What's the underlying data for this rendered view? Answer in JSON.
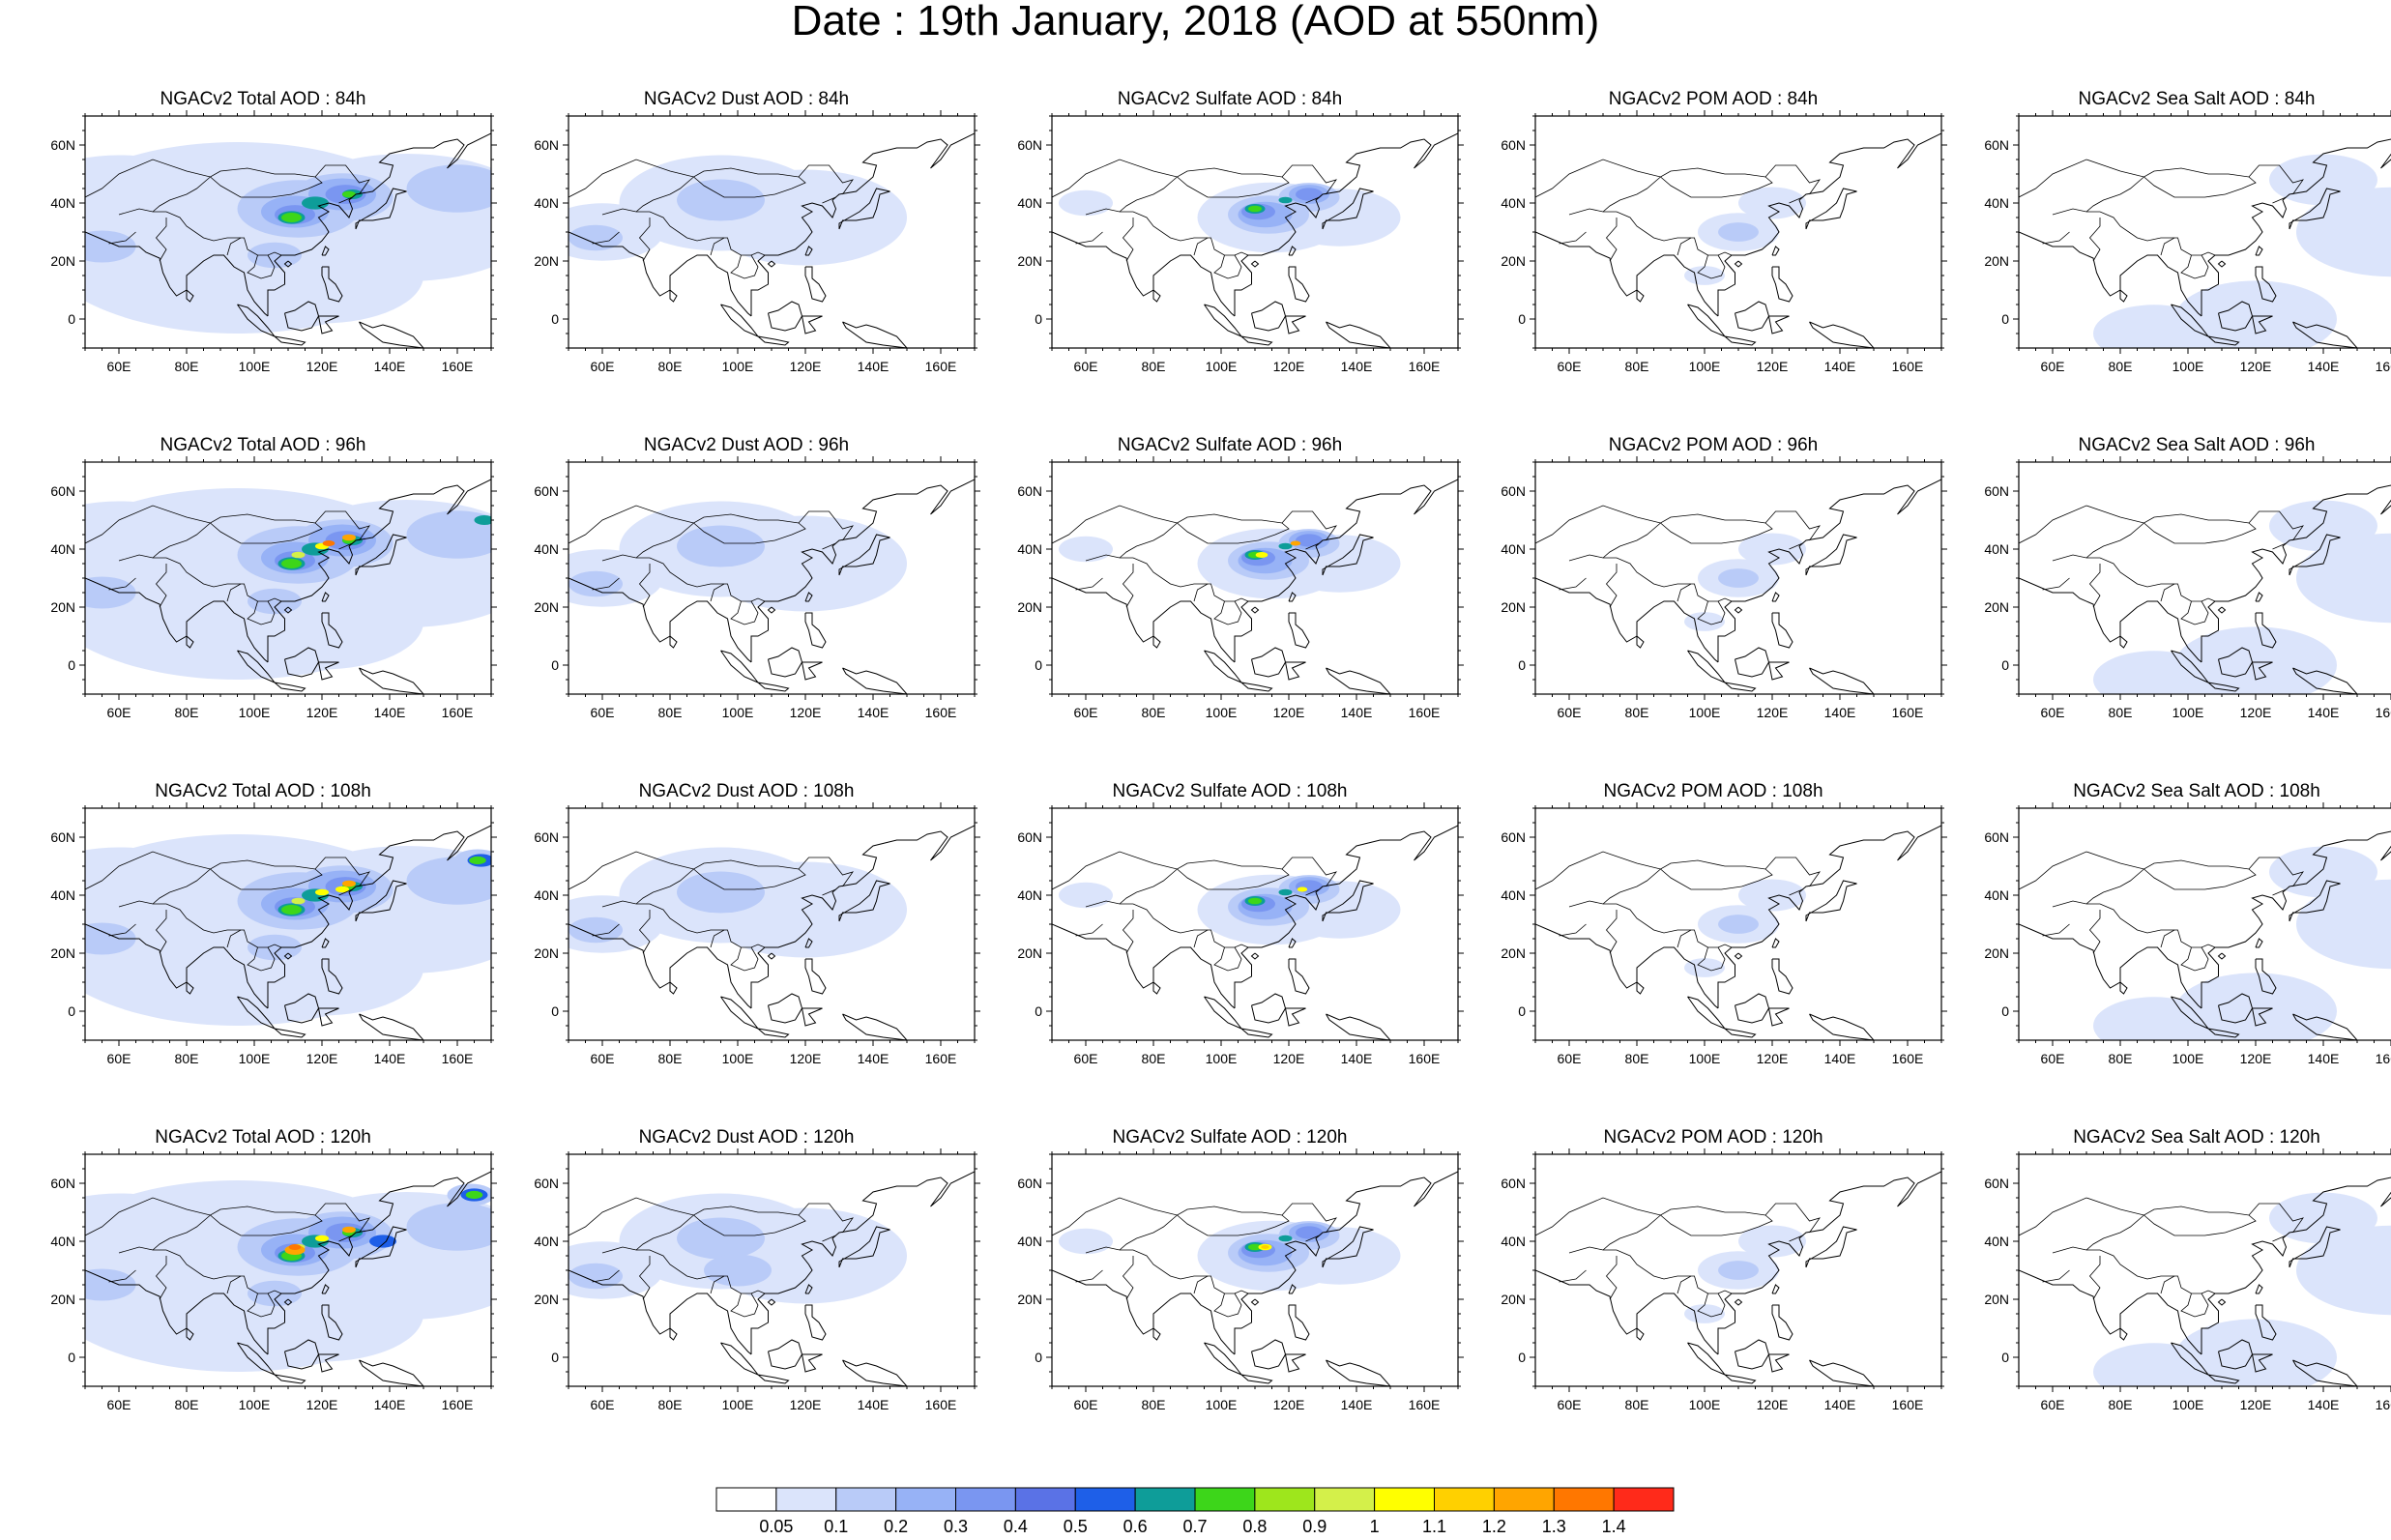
{
  "title": "Date : 19th January, 2018 (AOD at 550nm)",
  "panels": [
    [
      {
        "title": "NGACv2 Total AOD : 84h",
        "product": "total",
        "lead": "84h"
      },
      {
        "title": "NGACv2 Dust AOD : 84h",
        "product": "dust",
        "lead": "84h"
      },
      {
        "title": "NGACv2 Sulfate AOD : 84h",
        "product": "sulfate",
        "lead": "84h"
      },
      {
        "title": "NGACv2 POM AOD : 84h",
        "product": "pom",
        "lead": "84h"
      },
      {
        "title": "NGACv2 Sea Salt AOD : 84h",
        "product": "seasalt",
        "lead": "84h"
      }
    ],
    [
      {
        "title": "NGACv2 Total AOD : 96h",
        "product": "total",
        "lead": "96h"
      },
      {
        "title": "NGACv2 Dust AOD : 96h",
        "product": "dust",
        "lead": "96h"
      },
      {
        "title": "NGACv2 Sulfate AOD : 96h",
        "product": "sulfate",
        "lead": "96h"
      },
      {
        "title": "NGACv2 POM AOD : 96h",
        "product": "pom",
        "lead": "96h"
      },
      {
        "title": "NGACv2 Sea Salt AOD : 96h",
        "product": "seasalt",
        "lead": "96h"
      }
    ],
    [
      {
        "title": "NGACv2 Total AOD : 108h",
        "product": "total",
        "lead": "108h"
      },
      {
        "title": "NGACv2 Dust AOD : 108h",
        "product": "dust",
        "lead": "108h"
      },
      {
        "title": "NGACv2 Sulfate AOD : 108h",
        "product": "sulfate",
        "lead": "108h"
      },
      {
        "title": "NGACv2 POM AOD : 108h",
        "product": "pom",
        "lead": "108h"
      },
      {
        "title": "NGACv2 Sea Salt AOD : 108h",
        "product": "seasalt",
        "lead": "108h"
      }
    ],
    [
      {
        "title": "NGACv2 Total AOD : 120h",
        "product": "total",
        "lead": "120h"
      },
      {
        "title": "NGACv2 Dust AOD : 120h",
        "product": "dust",
        "lead": "120h"
      },
      {
        "title": "NGACv2 Sulfate AOD : 120h",
        "product": "sulfate",
        "lead": "120h"
      },
      {
        "title": "NGACv2 POM AOD : 120h",
        "product": "pom",
        "lead": "120h"
      },
      {
        "title": "NGACv2 Sea Salt  AOD : 120h",
        "product": "seasalt",
        "lead": "120h"
      }
    ]
  ],
  "map": {
    "lon_range": [
      50,
      170
    ],
    "lat_range": [
      -10,
      70
    ],
    "lon_ticks": [
      60,
      80,
      100,
      120,
      140,
      160
    ],
    "lon_tick_labels": [
      "60E",
      "80E",
      "100E",
      "120E",
      "140E",
      "160E"
    ],
    "lat_ticks": [
      0,
      20,
      40,
      60
    ],
    "lat_tick_labels": [
      "0",
      "20N",
      "40N",
      "60N"
    ]
  },
  "colorbar": {
    "levels": [
      "0.05",
      "0.1",
      "0.2",
      "0.3",
      "0.4",
      "0.5",
      "0.6",
      "0.7",
      "0.8",
      "0.9",
      "1",
      "1.1",
      "1.2",
      "1.3",
      "1.4"
    ],
    "colors": [
      "#ffffff",
      "#dbe4fb",
      "#b9cbf8",
      "#97b2f6",
      "#7a96f1",
      "#5a72e6",
      "#1e5fe8",
      "#0e9d99",
      "#3dd61a",
      "#9ee61c",
      "#d4f04a",
      "#ffff00",
      "#ffd000",
      "#ffa500",
      "#ff7700",
      "#ff2a1a"
    ]
  }
}
